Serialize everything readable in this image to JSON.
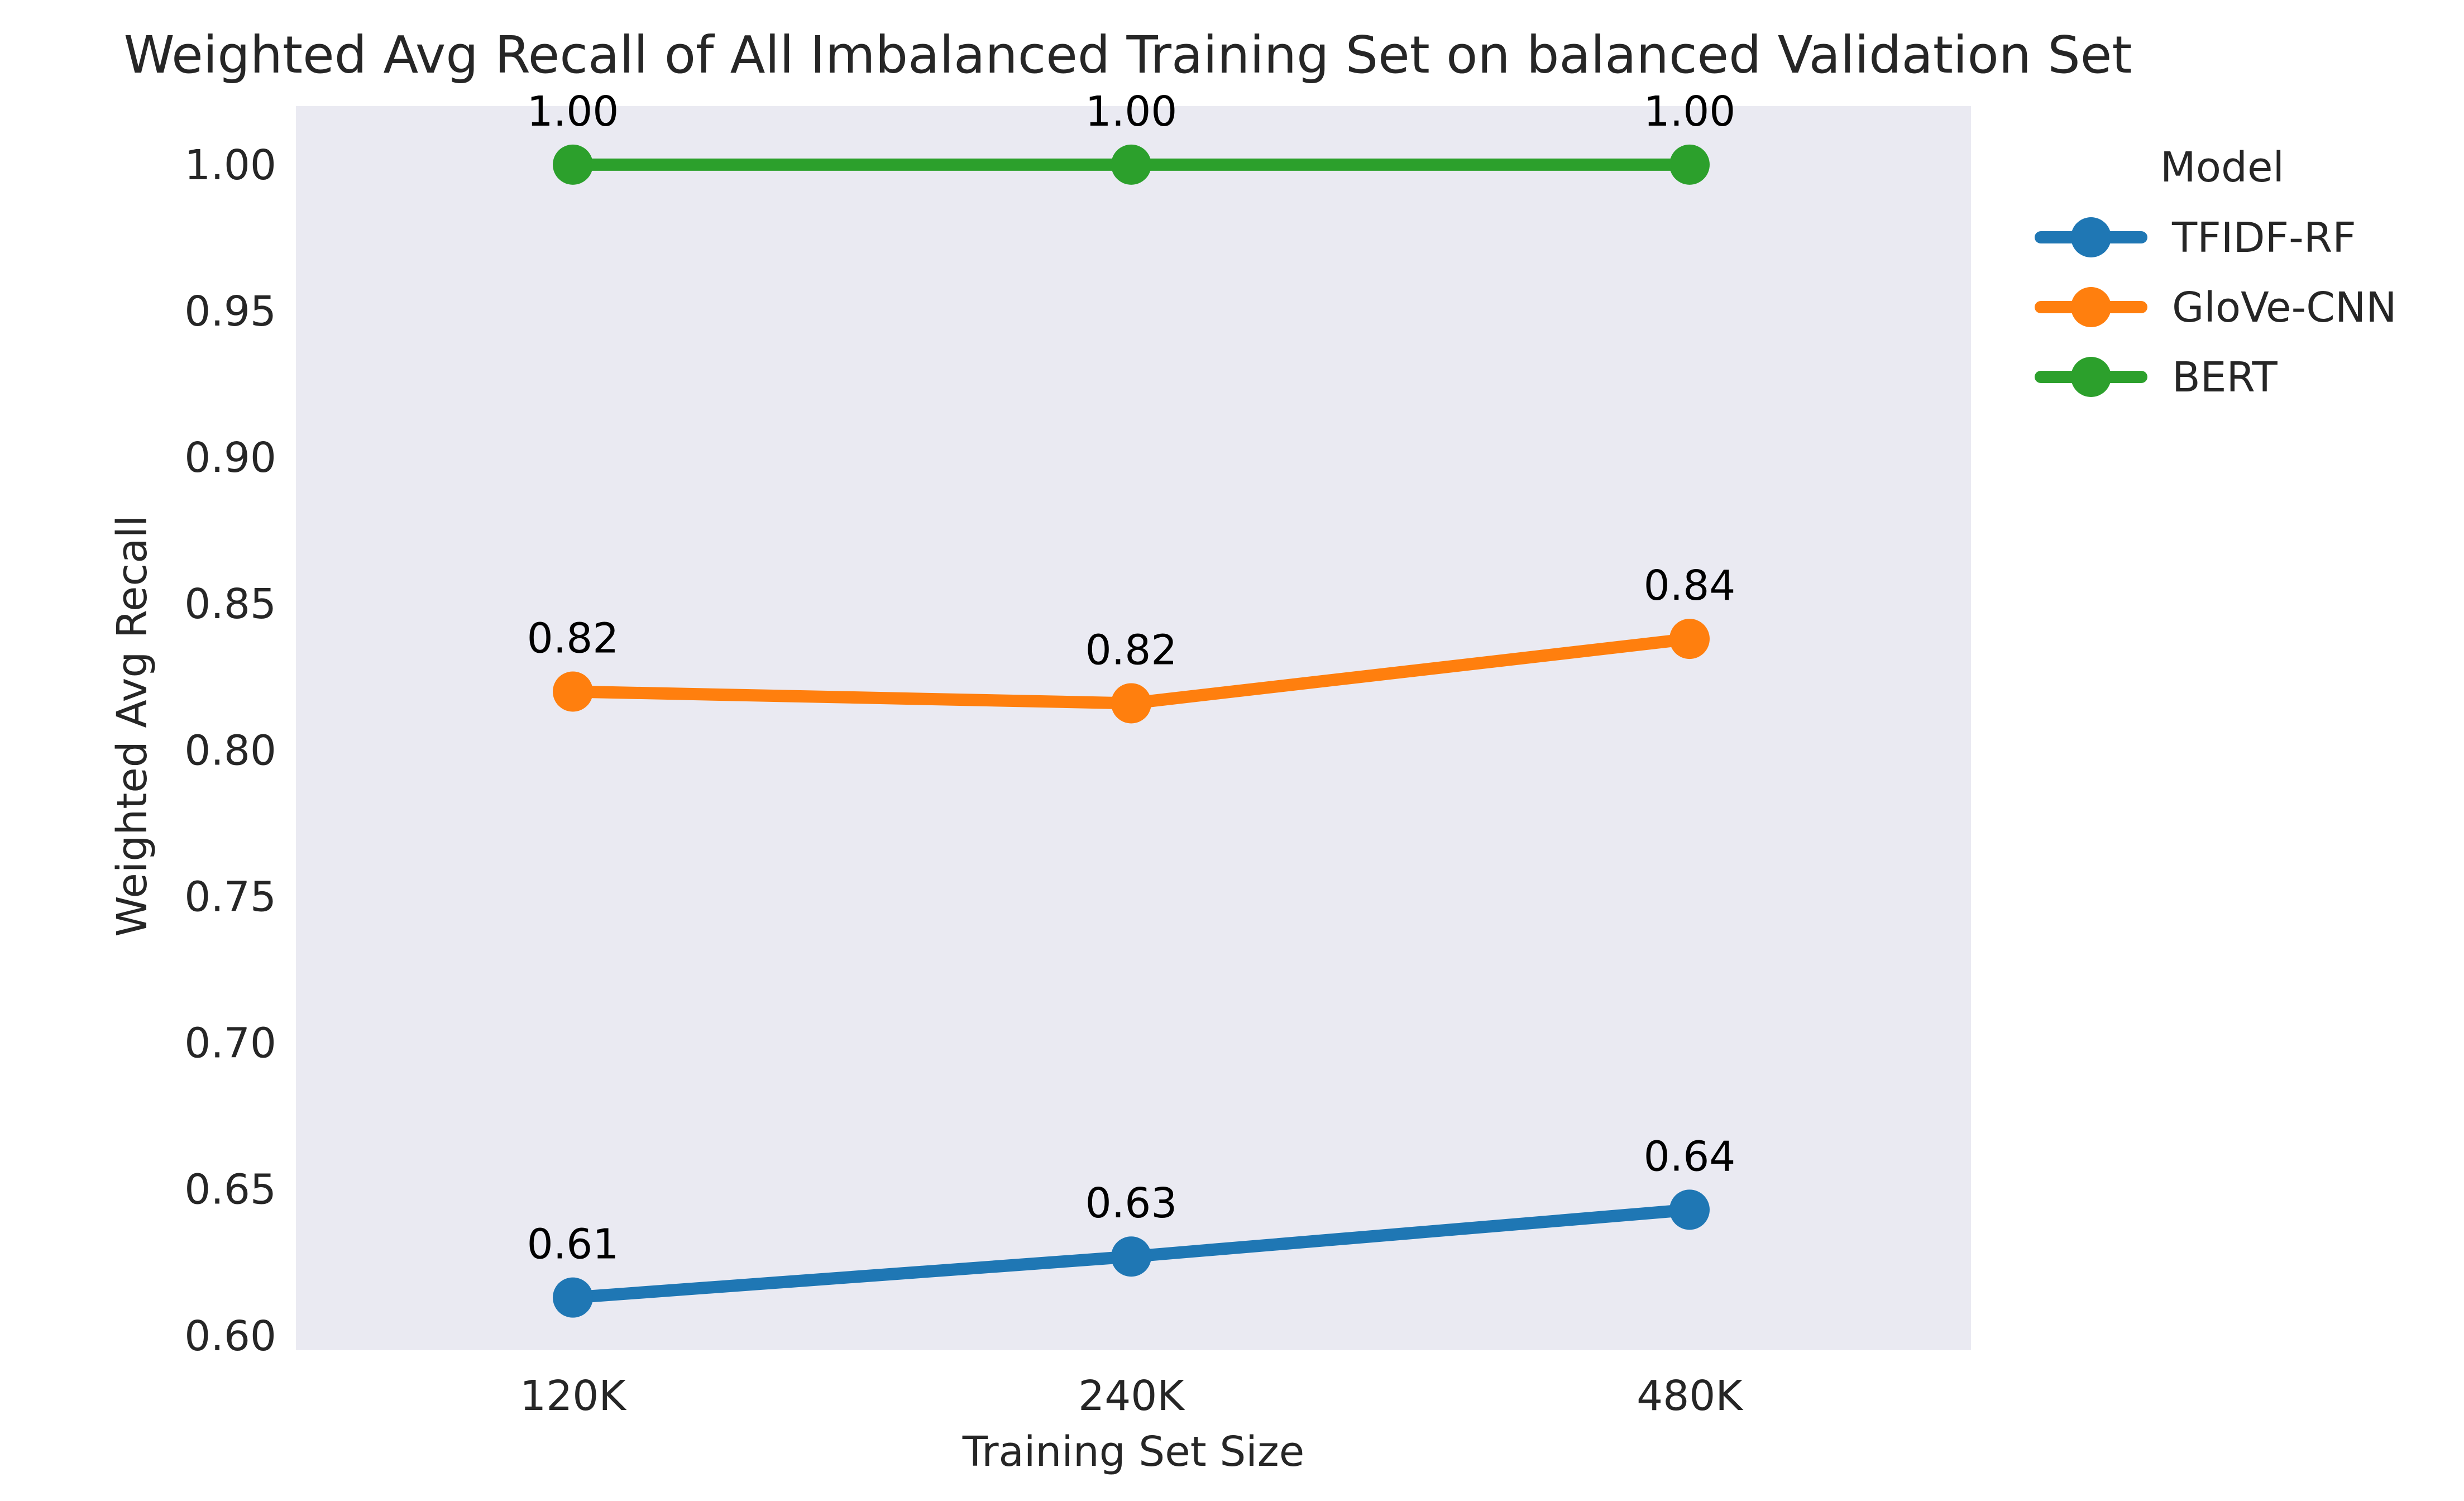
{
  "chart_data": {
    "type": "line",
    "title": "Weighted Avg Recall of All Imbalanced Training Set on balanced Validation Set",
    "xlabel": "Training Set Size",
    "ylabel": "Weighted Avg Recall",
    "categories": [
      "120K",
      "240K",
      "480K"
    ],
    "ylim": [
      0.595,
      1.02
    ],
    "yticks": [
      0.6,
      0.65,
      0.7,
      0.75,
      0.8,
      0.85,
      0.9,
      0.95,
      1.0
    ],
    "grid": false,
    "legend": {
      "title": "Model",
      "placement": "outside-right"
    },
    "series": [
      {
        "name": "TFIDF-RF",
        "color": "#1f77b4",
        "values": [
          0.613,
          0.627,
          0.643
        ],
        "labels": [
          "0.61",
          "0.63",
          "0.64"
        ]
      },
      {
        "name": "GloVe-CNN",
        "color": "#ff7f0e",
        "values": [
          0.82,
          0.816,
          0.838
        ],
        "labels": [
          "0.82",
          "0.82",
          "0.84"
        ]
      },
      {
        "name": "BERT",
        "color": "#2ca02c",
        "values": [
          1.0,
          1.0,
          1.0
        ],
        "labels": [
          "1.00",
          "1.00",
          "1.00"
        ]
      }
    ],
    "background_color": "#eaeaf2"
  }
}
